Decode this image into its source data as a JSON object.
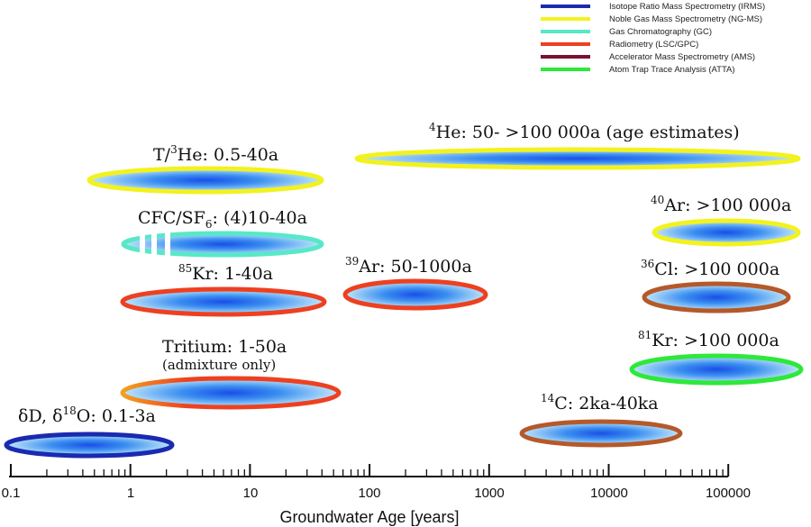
{
  "legend": [
    {
      "label": "Isotope Ratio Mass Spectrometry (IRMS)",
      "color": "#1a2ab0"
    },
    {
      "label": "Noble Gas Mass Spectrometry (NG-MS)",
      "color": "#f2f21e"
    },
    {
      "label": "Gas Chromatography (GC)",
      "color": "#58e8c8"
    },
    {
      "label": "Radiometry (LSC/GPC)",
      "color": "#ee4020"
    },
    {
      "label": "Accelerator Mass Spectrometry (AMS)",
      "color": "#7a1030"
    },
    {
      "label": "Atom Trap Trace Analysis (ATTA)",
      "color": "#2ee83a"
    }
  ],
  "tracers": {
    "he4": {
      "label": "He: 50- >100 000a (age estimates)",
      "sup": "4"
    },
    "the3": {
      "label": "T/",
      "sup": "3",
      "label2": "He: 0.5-40a"
    },
    "ar40": {
      "label": "Ar: >100 000a",
      "sup": "40"
    },
    "cfc": {
      "label": "CFC/SF",
      "sub": "6",
      "label2": ": (4)10-40a"
    },
    "kr85": {
      "label": "Kr: 1-40a",
      "sup": "85"
    },
    "ar39": {
      "label": "Ar: 50-1000a",
      "sup": "39"
    },
    "cl36": {
      "label": "Cl: >100 000a",
      "sup": "36"
    },
    "tritium": {
      "label": "Tritium: 1-50a",
      "note": "(admixture only)"
    },
    "kr81": {
      "label": "Kr: >100 000a",
      "sup": "81"
    },
    "c14": {
      "label": "C: 2ka-40ka",
      "sup": "14"
    },
    "do": {
      "label1": "δD, δ",
      "sup": "18",
      "label2": "O: 0.1-3a"
    }
  },
  "axis": {
    "title": "Groundwater Age [years]",
    "scale": "log",
    "range": [
      0.1,
      100000
    ],
    "ticks": [
      "0.1",
      "1",
      "10",
      "100",
      "1000",
      "10000",
      "100000"
    ]
  }
}
